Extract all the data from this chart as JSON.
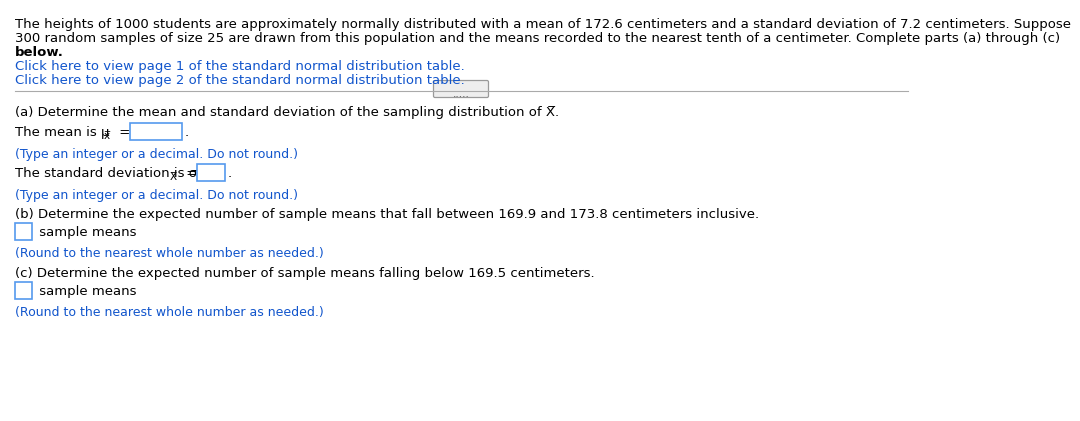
{
  "bg_color": "#ffffff",
  "text_color": "#000000",
  "link_color": "#1155CC",
  "box_color": "#5599EE",
  "separator_color": "#aaaaaa",
  "line1": "The heights of 1000 students are approximately normally distributed with a mean of 172.6 centimeters and a standard deviation of 7.2 centimeters. Suppose",
  "line2": "300 random samples of size 25 are drawn from this population and the means recorded to the nearest tenth of a centimeter. Complete parts (a) through (c)",
  "line3": "below.",
  "link1": "Click here to view page 1 of the standard normal distribution table.",
  "link2": "Click here to view page 2 of the standard normal distribution table.",
  "part_a": "(a) Determine the mean and standard deviation of the sampling distribution of X̅.",
  "mean_pre": "The mean is μ",
  "mean_sub": "x̅",
  "std_pre": "The standard deviation is σ",
  "std_sub": "X̅",
  "eq": " =",
  "period": ".",
  "hint_nodround": "(Type an integer or a decimal. Do not round.)",
  "part_b": "(b) Determine the expected number of sample means that fall between 169.9 and 173.8 centimeters inclusive.",
  "sample_means": " sample means",
  "hint_round": "(Round to the nearest whole number as needed.)",
  "part_c": "(c) Determine the expected number of sample means falling below 169.5 centimeters.",
  "dots": ".....",
  "fs": 9.5,
  "fs_hint": 9.0,
  "fs_sub": 7.5
}
